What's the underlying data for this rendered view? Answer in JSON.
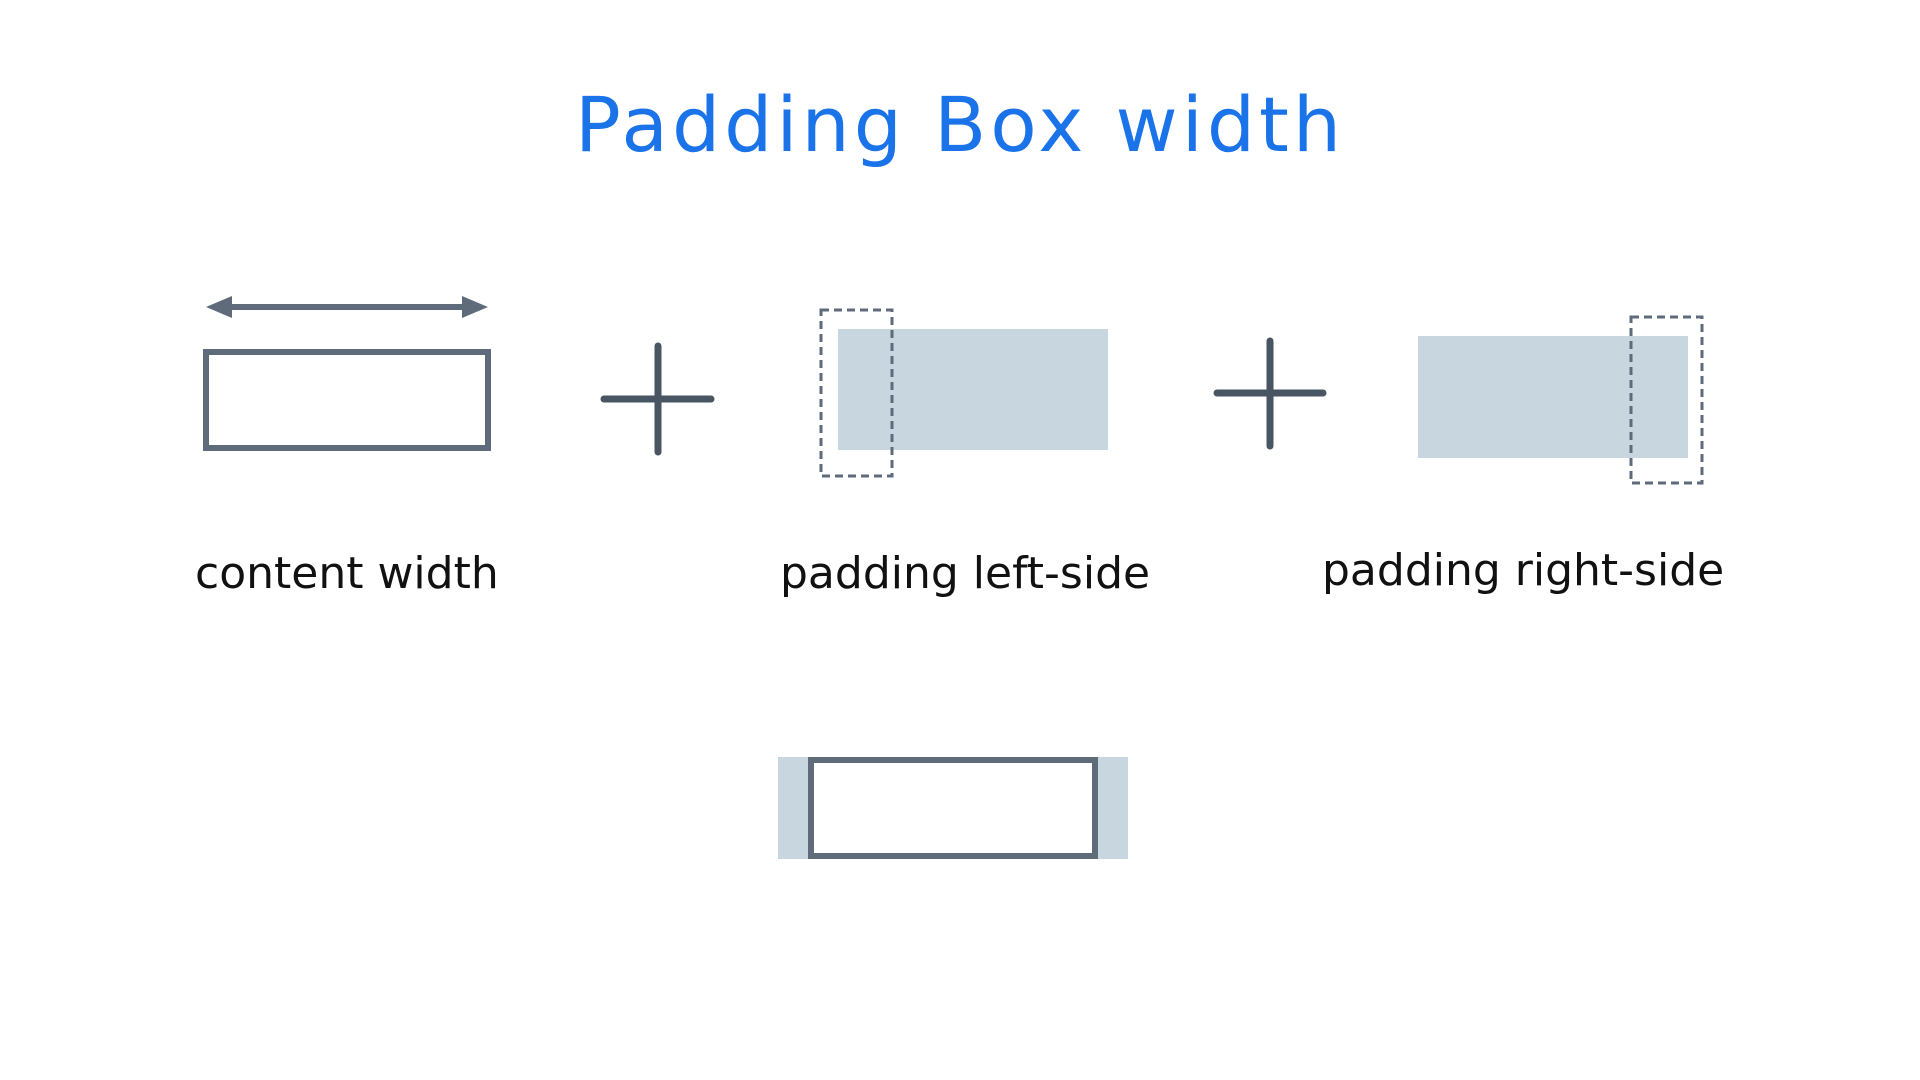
{
  "slide": {
    "title": "Padding Box width",
    "labels": {
      "content_width": "content width",
      "padding_left": "padding left-side",
      "padding_right": "padding right-side"
    }
  },
  "colors": {
    "title": "#1a73e8",
    "stroke": "#5f6b7a",
    "operator": "#4a5563",
    "padding_fill": "#c8d6df",
    "dashed": "#5f6b7a",
    "text": "#111111"
  },
  "icons": {
    "content_width_arrow": "double-arrow-icon",
    "plus": "plus-icon"
  }
}
